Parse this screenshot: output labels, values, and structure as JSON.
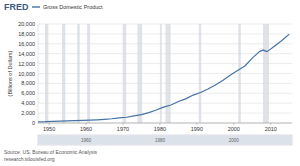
{
  "chart_data": {
    "type": "line",
    "logo": "FRED",
    "y_label": "(Billions of Dollars)",
    "source": "Source: US. Bureau of Economic Analysis",
    "url": "research.stlouisfed.org",
    "x": [
      1947,
      1949,
      1951,
      1953,
      1955,
      1957,
      1959,
      1961,
      1963,
      1965,
      1967,
      1969,
      1971,
      1973,
      1975,
      1977,
      1979,
      1981,
      1983,
      1985,
      1987,
      1989,
      1991,
      1993,
      1995,
      1997,
      1999,
      2001,
      2003,
      2005,
      2007,
      2008,
      2009,
      2011,
      2013,
      2015
    ],
    "series": [
      {
        "name": "Gross Domestic Product",
        "color": "#4572a7",
        "values": [
          244,
          272,
          348,
          389,
          425,
          474,
          522,
          563,
          638,
          743,
          862,
          1019,
          1165,
          1425,
          1689,
          2086,
          2627,
          3207,
          3638,
          4339,
          4870,
          5641,
          6158,
          6858,
          7664,
          8608,
          9661,
          10622,
          11511,
          13094,
          14478,
          14718,
          14419,
          15518,
          16663,
          17947
        ]
      }
    ],
    "recessions": [
      [
        1948.9,
        1949.8
      ],
      [
        1953.5,
        1954.4
      ],
      [
        1957.6,
        1958.3
      ],
      [
        1960.3,
        1961.1
      ],
      [
        1969.9,
        1970.9
      ],
      [
        1973.9,
        1975.2
      ],
      [
        1980.0,
        1980.5
      ],
      [
        1981.5,
        1982.9
      ],
      [
        1990.5,
        1991.2
      ],
      [
        2001.2,
        2001.9
      ],
      [
        2007.9,
        2009.5
      ]
    ],
    "xlim": [
      1947,
      2015.75
    ],
    "xticks": [
      1950,
      1960,
      1970,
      1980,
      1990,
      2000,
      2010
    ],
    "ylim": [
      0,
      20000
    ],
    "yticks": [
      0,
      {
        "value": 2000,
        "label": "2,000"
      },
      {
        "value": 4000,
        "label": "4,000"
      },
      {
        "value": 6000,
        "label": "6,000"
      },
      {
        "value": 8000,
        "label": "8,000"
      },
      {
        "value": 10000,
        "label": "10,000"
      },
      {
        "value": 12000,
        "label": "12,000"
      },
      {
        "value": 14000,
        "label": "14,000"
      },
      {
        "value": 16000,
        "label": "16,000"
      },
      {
        "value": 18000,
        "label": "18,000"
      },
      {
        "value": 20000,
        "label": "20,000"
      }
    ],
    "navigator": {
      "xticks": [
        1960,
        1980,
        2000
      ]
    },
    "grid": true,
    "legend": "top-left"
  }
}
